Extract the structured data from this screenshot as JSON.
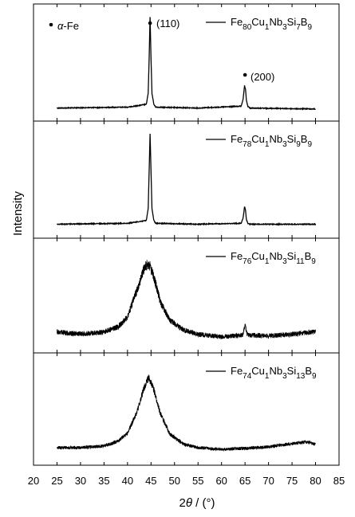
{
  "chart_data": {
    "type": "line",
    "xlabel": "2θ / (°)",
    "ylabel": "Intensity",
    "xlim": [
      20,
      85
    ],
    "x_ticks": [
      "20",
      "25",
      "30",
      "35",
      "40",
      "45",
      "50",
      "55",
      "60",
      "65",
      "70",
      "75",
      "80",
      "85"
    ],
    "y_ticks_labeled": false,
    "series": [
      {
        "name": "Fe80Cu1Nb3Si7B9",
        "legend": {
          "sym": "Fe",
          "a": "80",
          "b": "Cu",
          "c": "1",
          "d": "Nb",
          "e": "3",
          "f": "Si",
          "g": "7",
          "h": "B",
          "i": "9"
        },
        "x": [
          25,
          40,
          44,
          44.4,
          44.6,
          44.8,
          45.0,
          45.2,
          45.6,
          46,
          55,
          64.2,
          64.6,
          64.9,
          65.1,
          65.3,
          65.6,
          66,
          80
        ],
        "y": [
          0.02,
          0.03,
          0.06,
          0.18,
          0.55,
          1.0,
          0.55,
          0.18,
          0.06,
          0.03,
          0.02,
          0.04,
          0.12,
          0.26,
          0.22,
          0.1,
          0.04,
          0.02,
          0.01
        ]
      },
      {
        "name": "Fe78Cu1Nb3Si9B9",
        "legend": {
          "sym": "Fe",
          "a": "78",
          "b": "Cu",
          "c": "1",
          "d": "Nb",
          "e": "3",
          "f": "Si",
          "g": "9",
          "h": "B",
          "i": "9"
        },
        "x": [
          25,
          40,
          44,
          44.4,
          44.6,
          44.8,
          45.0,
          45.2,
          45.6,
          46,
          55,
          64.2,
          64.6,
          64.9,
          65.1,
          65.3,
          65.6,
          66,
          80
        ],
        "y": [
          0.03,
          0.04,
          0.07,
          0.2,
          0.6,
          1.0,
          0.6,
          0.2,
          0.07,
          0.04,
          0.03,
          0.04,
          0.1,
          0.22,
          0.18,
          0.08,
          0.04,
          0.03,
          0.03
        ]
      },
      {
        "name": "Fe76Cu1Nb3Si11B9",
        "legend": {
          "sym": "Fe",
          "a": "76",
          "b": "Cu",
          "c": "1",
          "d": "Nb",
          "e": "3",
          "f": "Si",
          "g": "11",
          "h": "B",
          "i": "9"
        },
        "x": [
          25,
          28,
          32,
          35,
          38,
          40,
          42,
          43.5,
          44.5,
          45.5,
          47,
          49,
          52,
          55,
          60,
          64.5,
          65,
          65.5,
          70,
          75,
          80
        ],
        "y": [
          0.12,
          0.1,
          0.1,
          0.12,
          0.18,
          0.3,
          0.62,
          0.88,
          0.95,
          0.8,
          0.48,
          0.26,
          0.14,
          0.09,
          0.06,
          0.08,
          0.2,
          0.08,
          0.07,
          0.09,
          0.12
        ]
      },
      {
        "name": "Fe74Cu1Nb3Si13B9",
        "legend": {
          "sym": "Fe",
          "a": "74",
          "b": "Cu",
          "c": "1",
          "d": "Nb",
          "e": "3",
          "f": "Si",
          "g": "13",
          "h": "B",
          "i": "9"
        },
        "x": [
          25,
          30,
          35,
          38,
          40,
          42,
          43.5,
          44.5,
          45.5,
          47,
          49,
          52,
          55,
          60,
          65,
          70,
          75,
          78,
          80
        ],
        "y": [
          0.08,
          0.08,
          0.1,
          0.16,
          0.26,
          0.52,
          0.82,
          0.95,
          0.82,
          0.5,
          0.25,
          0.12,
          0.08,
          0.06,
          0.07,
          0.09,
          0.13,
          0.15,
          0.12
        ]
      }
    ],
    "annotations": [
      {
        "label": "α-Fe",
        "x": 24,
        "panel": 0,
        "level": 0.85,
        "marker": "dot"
      },
      {
        "label": "(110)",
        "x": 44.8,
        "panel": 0,
        "level": 1.0,
        "marker": "dot"
      },
      {
        "label": "(200)",
        "x": 65.0,
        "panel": 0,
        "level": 0.55,
        "marker": "dot"
      }
    ]
  }
}
